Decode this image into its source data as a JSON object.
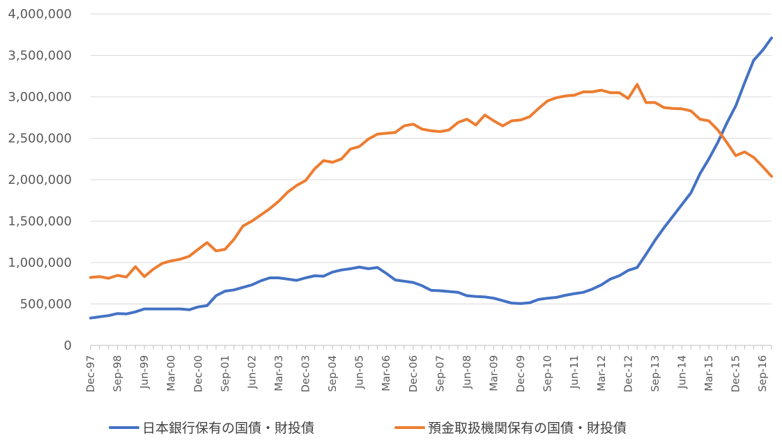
{
  "chart_data": {
    "type": "line",
    "ylim": [
      0,
      4000000
    ],
    "y_ticks": [
      0,
      500000,
      1000000,
      1500000,
      2000000,
      2500000,
      3000000,
      3500000,
      4000000
    ],
    "y_tick_labels": [
      "0",
      "500,000",
      "1,000,000",
      "1,500,000",
      "2,000,000",
      "2,500,000",
      "3,000,000",
      "3,500,000",
      "4,000,000"
    ],
    "x": [
      "Dec-97",
      "Mar-98",
      "Jun-98",
      "Sep-98",
      "Dec-98",
      "Mar-99",
      "Jun-99",
      "Sep-99",
      "Dec-99",
      "Mar-00",
      "Jun-00",
      "Sep-00",
      "Dec-00",
      "Mar-01",
      "Jun-01",
      "Sep-01",
      "Dec-01",
      "Mar-02",
      "Jun-02",
      "Sep-02",
      "Dec-02",
      "Mar-03",
      "Jun-03",
      "Sep-03",
      "Dec-03",
      "Mar-04",
      "Jun-04",
      "Sep-04",
      "Dec-04",
      "Mar-05",
      "Jun-05",
      "Sep-05",
      "Dec-05",
      "Mar-06",
      "Jun-06",
      "Sep-06",
      "Dec-06",
      "Mar-07",
      "Jun-07",
      "Sep-07",
      "Dec-07",
      "Mar-08",
      "Jun-08",
      "Sep-08",
      "Dec-08",
      "Mar-09",
      "Jun-09",
      "Sep-09",
      "Dec-09",
      "Mar-10",
      "Jun-10",
      "Sep-10",
      "Dec-10",
      "Mar-11",
      "Jun-11",
      "Sep-11",
      "Dec-11",
      "Mar-12",
      "Jun-12",
      "Sep-12",
      "Dec-12",
      "Mar-13",
      "Jun-13",
      "Sep-13",
      "Dec-13",
      "Mar-14",
      "Jun-14",
      "Sep-14",
      "Dec-14",
      "Mar-15",
      "Jun-15",
      "Sep-15",
      "Dec-15",
      "Mar-16",
      "Jun-16",
      "Sep-16",
      "Dec-16"
    ],
    "x_tick_labels": [
      "Dec-97",
      "Sep-98",
      "Jun-99",
      "Mar-00",
      "Dec-00",
      "Sep-01",
      "Jun-02",
      "Mar-03",
      "Dec-03",
      "Sep-04",
      "Jun-05",
      "Mar-06",
      "Dec-06",
      "Sep-07",
      "Jun-08",
      "Mar-09",
      "Dec-09",
      "Sep-10",
      "Jun-11",
      "Mar-12",
      "Dec-12",
      "Sep-13",
      "Jun-14",
      "Mar-15",
      "Dec-15",
      "Sep-16"
    ],
    "series": [
      {
        "name": "日本銀行保有の国債・財投債",
        "color": "#4472c4",
        "values": [
          330000,
          345000,
          360000,
          385000,
          380000,
          405000,
          440000,
          440000,
          440000,
          440000,
          440000,
          430000,
          465000,
          480000,
          600000,
          655000,
          670000,
          700000,
          730000,
          780000,
          815000,
          815000,
          800000,
          785000,
          815000,
          840000,
          835000,
          885000,
          910000,
          925000,
          945000,
          925000,
          940000,
          870000,
          790000,
          775000,
          760000,
          720000,
          665000,
          660000,
          650000,
          640000,
          600000,
          590000,
          585000,
          570000,
          540000,
          510000,
          505000,
          515000,
          555000,
          570000,
          580000,
          605000,
          625000,
          640000,
          680000,
          730000,
          800000,
          840000,
          905000,
          940000,
          1100000,
          1270000,
          1420000,
          1560000,
          1700000,
          1840000,
          2070000,
          2250000,
          2450000,
          2680000,
          2890000,
          3170000,
          3440000,
          3560000,
          3710000
        ]
      },
      {
        "name": "預金取扱機関保有の国債・財投債",
        "color": "#ed7d31",
        "values": [
          820000,
          830000,
          810000,
          845000,
          825000,
          950000,
          830000,
          920000,
          990000,
          1020000,
          1040000,
          1075000,
          1160000,
          1240000,
          1140000,
          1160000,
          1280000,
          1440000,
          1500000,
          1575000,
          1650000,
          1740000,
          1850000,
          1930000,
          1990000,
          2130000,
          2230000,
          2210000,
          2250000,
          2370000,
          2400000,
          2490000,
          2550000,
          2560000,
          2570000,
          2650000,
          2670000,
          2610000,
          2590000,
          2580000,
          2600000,
          2690000,
          2730000,
          2660000,
          2780000,
          2710000,
          2650000,
          2710000,
          2720000,
          2760000,
          2860000,
          2950000,
          2990000,
          3010000,
          3020000,
          3060000,
          3060000,
          3080000,
          3050000,
          3050000,
          2980000,
          3150000,
          2930000,
          2930000,
          2870000,
          2860000,
          2855000,
          2830000,
          2730000,
          2710000,
          2600000,
          2450000,
          2290000,
          2335000,
          2270000,
          2160000,
          2040000
        ]
      }
    ]
  }
}
